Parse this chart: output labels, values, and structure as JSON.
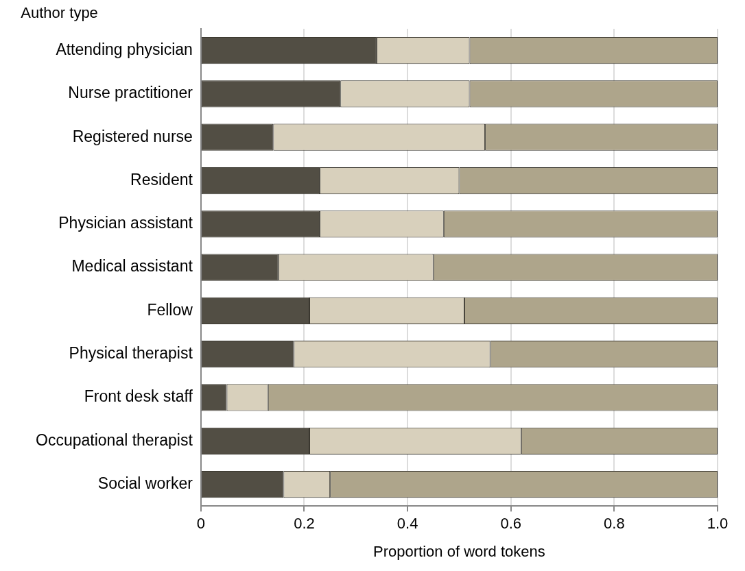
{
  "chart_data": {
    "type": "bar",
    "orientation": "horizontal",
    "stacked": true,
    "ylabel": "Author type",
    "xlabel": "Proportion of word tokens",
    "categories": [
      "Attending physician",
      "Nurse practitioner",
      "Registered nurse",
      "Resident",
      "Physician assistant",
      "Medical assistant",
      "Fellow",
      "Physical therapist",
      "Front desk staff",
      "Occupational therapist",
      "Social worker"
    ],
    "series": [
      {
        "color": "#524e44",
        "values": [
          0.34,
          0.27,
          0.14,
          0.23,
          0.23,
          0.15,
          0.21,
          0.18,
          0.05,
          0.21,
          0.16
        ]
      },
      {
        "color": "#d8d0bc",
        "values": [
          0.18,
          0.25,
          0.41,
          0.27,
          0.24,
          0.3,
          0.3,
          0.38,
          0.08,
          0.41,
          0.09
        ]
      },
      {
        "color": "#aea58b",
        "values": [
          0.48,
          0.48,
          0.45,
          0.5,
          0.53,
          0.55,
          0.49,
          0.44,
          0.87,
          0.38,
          0.75
        ]
      }
    ],
    "xlim": [
      0,
      1
    ],
    "xticks": [
      0,
      0.2,
      0.4,
      0.6,
      0.8,
      {
        "value": 1,
        "label": "1.0"
      }
    ],
    "grid": "x",
    "legend": false
  }
}
